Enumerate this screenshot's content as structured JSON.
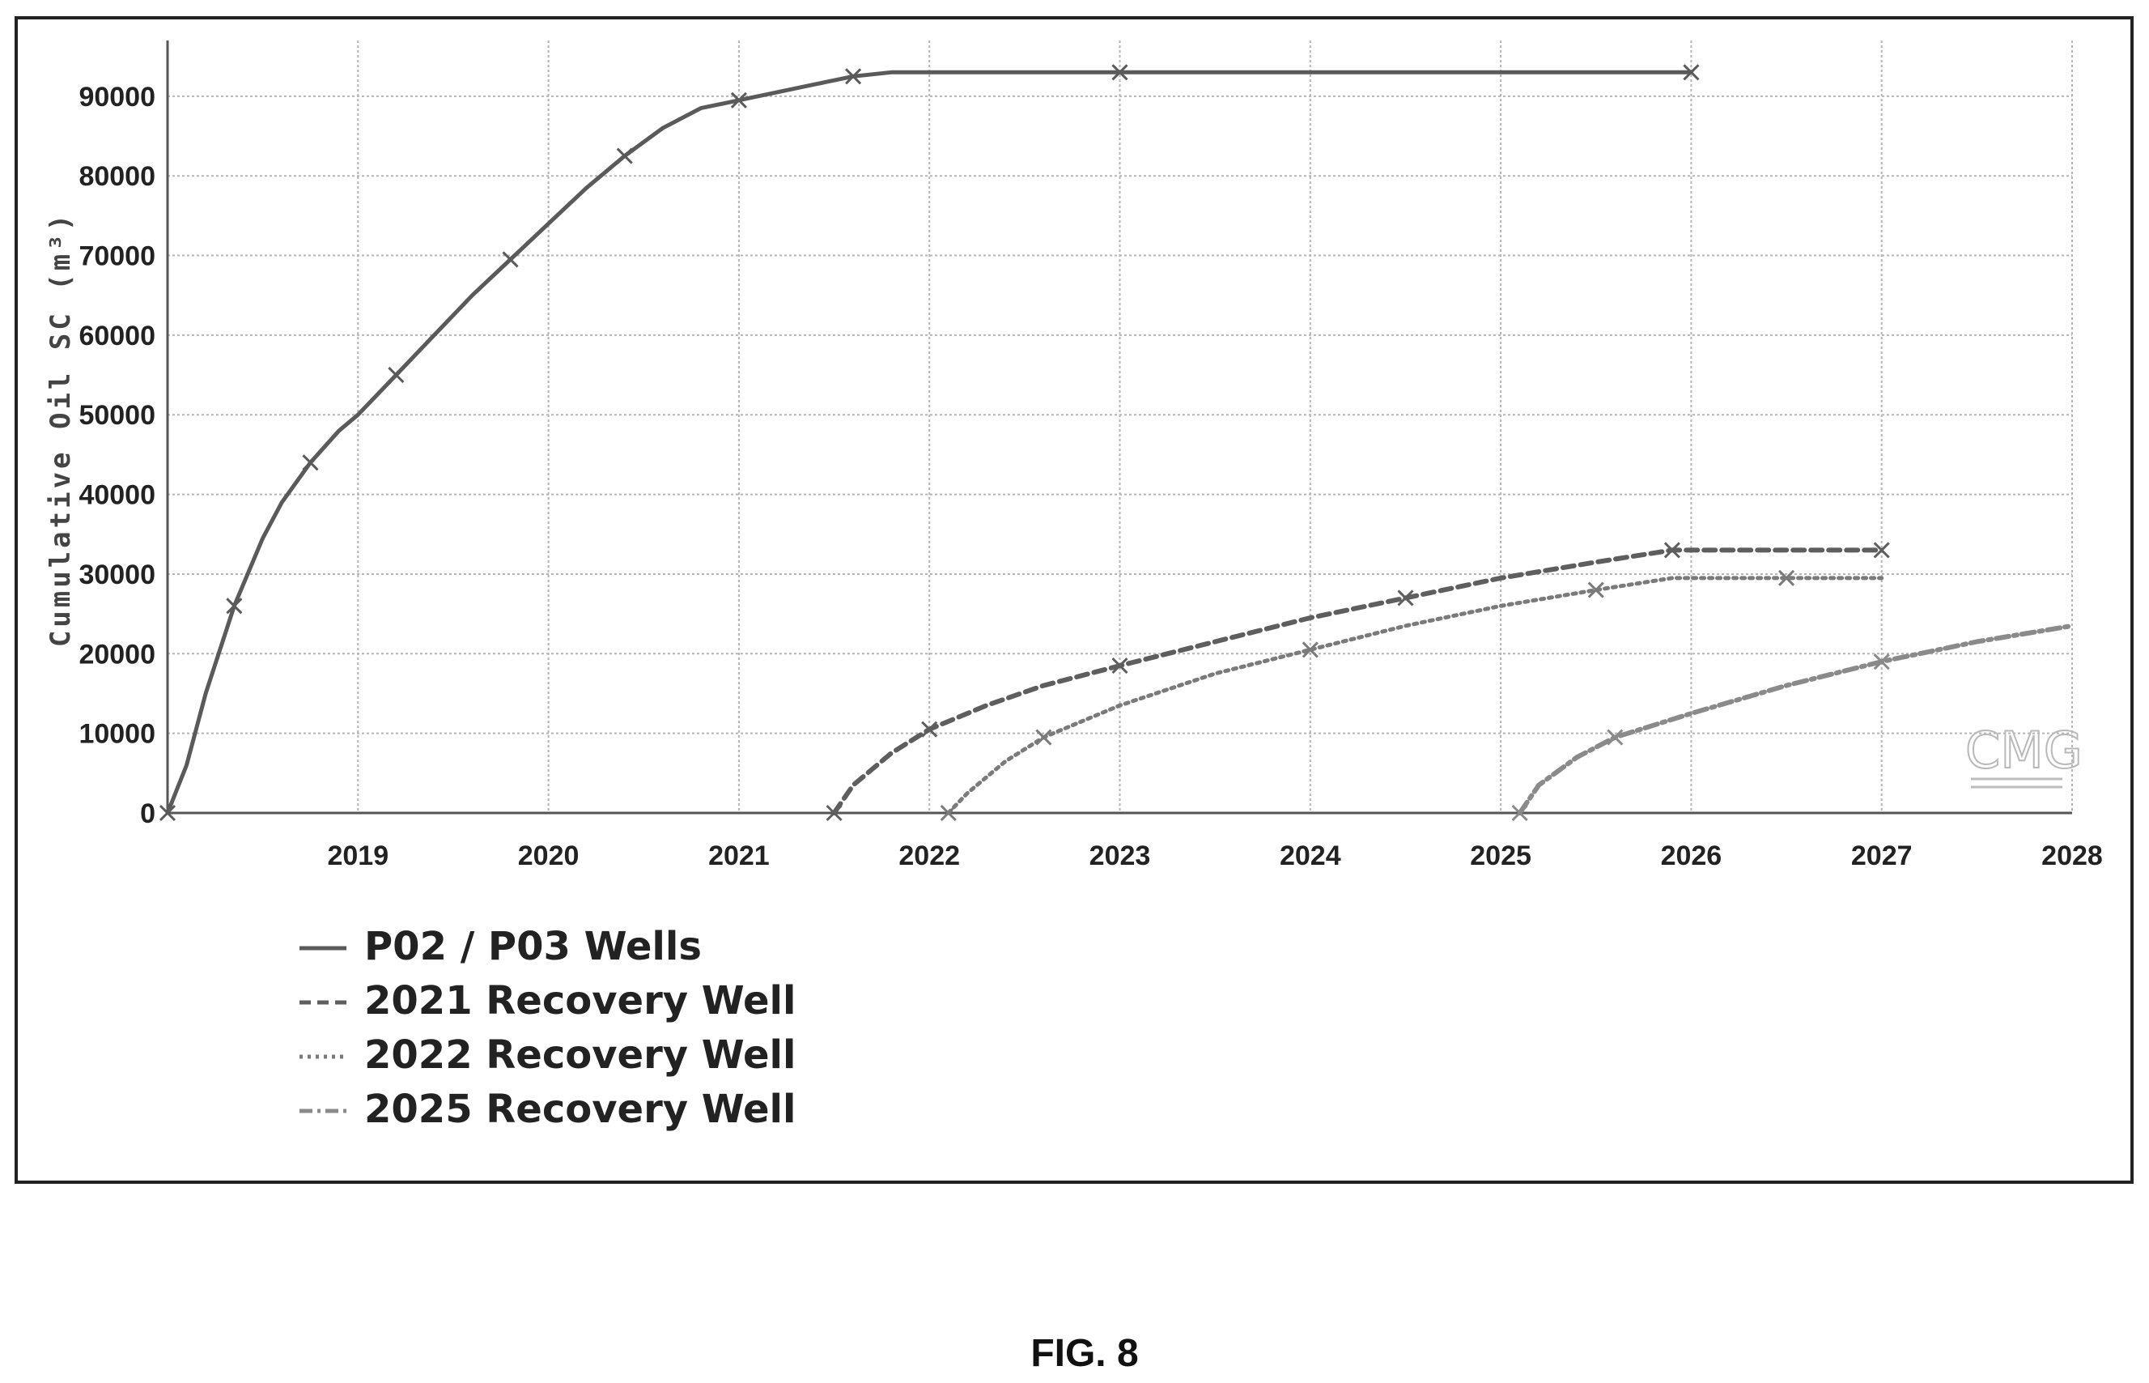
{
  "chart_data": {
    "type": "line",
    "title": "",
    "xlabel": "",
    "ylabel": "Cumulative Oil SC (m³)",
    "xlim": [
      2018.0,
      2028.0
    ],
    "ylim": [
      0,
      97000
    ],
    "x_ticks": [
      2019,
      2020,
      2021,
      2022,
      2023,
      2024,
      2025,
      2026,
      2027,
      2028
    ],
    "y_ticks": [
      0,
      10000,
      20000,
      30000,
      40000,
      50000,
      60000,
      70000,
      80000,
      90000
    ],
    "grid": true,
    "legend_position": "bottom-left",
    "series": [
      {
        "name": "P02 / P03 Wells",
        "style": "solid",
        "color": "#5a5a5a",
        "x": [
          2018.0,
          2018.1,
          2018.2,
          2018.35,
          2018.5,
          2018.6,
          2018.75,
          2018.9,
          2019.0,
          2019.2,
          2019.4,
          2019.6,
          2019.8,
          2020.0,
          2020.2,
          2020.4,
          2020.6,
          2020.8,
          2021.0,
          2021.2,
          2021.4,
          2021.6,
          2021.8,
          2022.0,
          2023.0,
          2024.0,
          2025.0,
          2026.0
        ],
        "y": [
          0,
          6000,
          15000,
          26000,
          34500,
          39000,
          44000,
          48000,
          50000,
          55000,
          60000,
          65000,
          69500,
          74000,
          78500,
          82500,
          86000,
          88500,
          89500,
          90500,
          91500,
          92500,
          93000,
          93000,
          93000,
          93000,
          93000,
          93000
        ]
      },
      {
        "name": "2021 Recovery Well",
        "style": "dashed",
        "color": "#5e5e5e",
        "x": [
          2021.5,
          2021.6,
          2021.8,
          2022.0,
          2022.3,
          2022.6,
          2023.0,
          2023.5,
          2024.0,
          2024.5,
          2025.0,
          2025.5,
          2025.9,
          2026.0,
          2026.5,
          2027.0
        ],
        "y": [
          0,
          3500,
          7500,
          10500,
          13500,
          16000,
          18500,
          21500,
          24500,
          27000,
          29500,
          31500,
          33000,
          33000,
          33000,
          33000
        ]
      },
      {
        "name": "2022 Recovery Well",
        "style": "dotted",
        "color": "#7a7a7a",
        "x": [
          2022.1,
          2022.2,
          2022.4,
          2022.6,
          2023.0,
          2023.5,
          2024.0,
          2024.5,
          2025.0,
          2025.5,
          2025.9,
          2026.0,
          2026.5,
          2027.0
        ],
        "y": [
          0,
          2500,
          6500,
          9500,
          13500,
          17500,
          20500,
          23500,
          26000,
          28000,
          29500,
          29500,
          29500,
          29500
        ]
      },
      {
        "name": "2025 Recovery Well",
        "style": "dashdot",
        "color": "#8a8a8a",
        "x": [
          2025.1,
          2025.2,
          2025.4,
          2025.6,
          2026.0,
          2026.5,
          2027.0,
          2027.5,
          2028.0
        ],
        "y": [
          0,
          3500,
          7000,
          9500,
          12500,
          16000,
          19000,
          21500,
          23500
        ]
      }
    ]
  },
  "figure": {
    "caption": "FIG. 8"
  }
}
